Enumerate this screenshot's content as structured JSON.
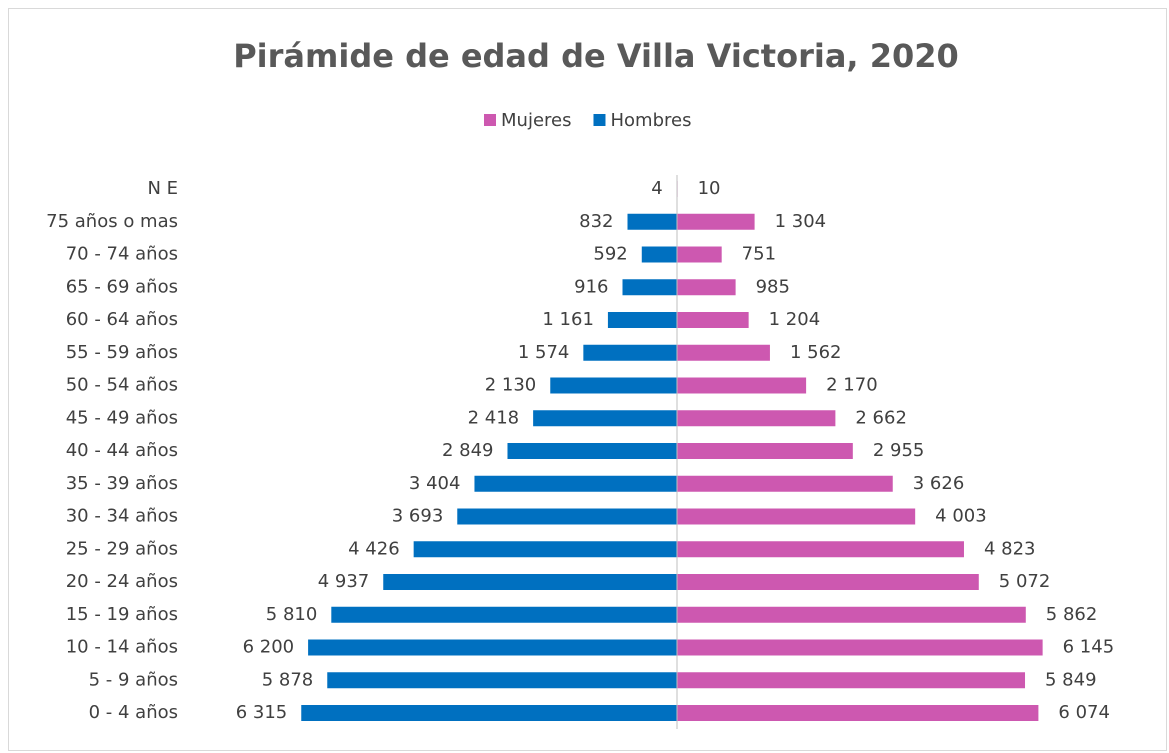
{
  "chart_data": {
    "type": "pyramid",
    "title": "Pirámide de edad de Villa Victoria, 2020",
    "categories": [
      "N E",
      "75 años o mas",
      "70 - 74 años",
      "65 - 69 años",
      "60 - 64 años",
      "55 - 59 años",
      "50 - 54 años",
      "45 - 49 años",
      "40 - 44 años",
      "35 - 39 años",
      "30 - 34 años",
      "25 - 29 años",
      "20 - 24 años",
      "15 - 19 años",
      "10 - 14 años",
      "5 - 9 años",
      "0 - 4 años"
    ],
    "series": [
      {
        "name": "Mujeres",
        "color": "#cd58b0",
        "values": [
          10,
          1304,
          751,
          985,
          1204,
          1562,
          2170,
          2662,
          2955,
          3626,
          4003,
          4823,
          5072,
          5862,
          6145,
          5849,
          6074
        ],
        "value_labels": [
          "10",
          "1 304",
          "751",
          "985",
          "1 204",
          "1 562",
          "2 170",
          "2 662",
          "2 955",
          "3 626",
          "4 003",
          "4 823",
          "5 072",
          "5 862",
          "6 145",
          "5 849",
          "6 074"
        ]
      },
      {
        "name": "Hombres",
        "color": "#0070c0",
        "values": [
          4,
          832,
          592,
          916,
          1161,
          1574,
          2130,
          2418,
          2849,
          3404,
          3693,
          4426,
          4937,
          5810,
          6200,
          5878,
          6315
        ],
        "value_labels": [
          "4",
          "832",
          "592",
          "916",
          "1 161",
          "1 574",
          "2 130",
          "2 418",
          "2 849",
          "3 404",
          "3 693",
          "4 426",
          "4 937",
          "5 810",
          "6 200",
          "5 878",
          "6 315"
        ]
      }
    ],
    "legend": "top"
  }
}
